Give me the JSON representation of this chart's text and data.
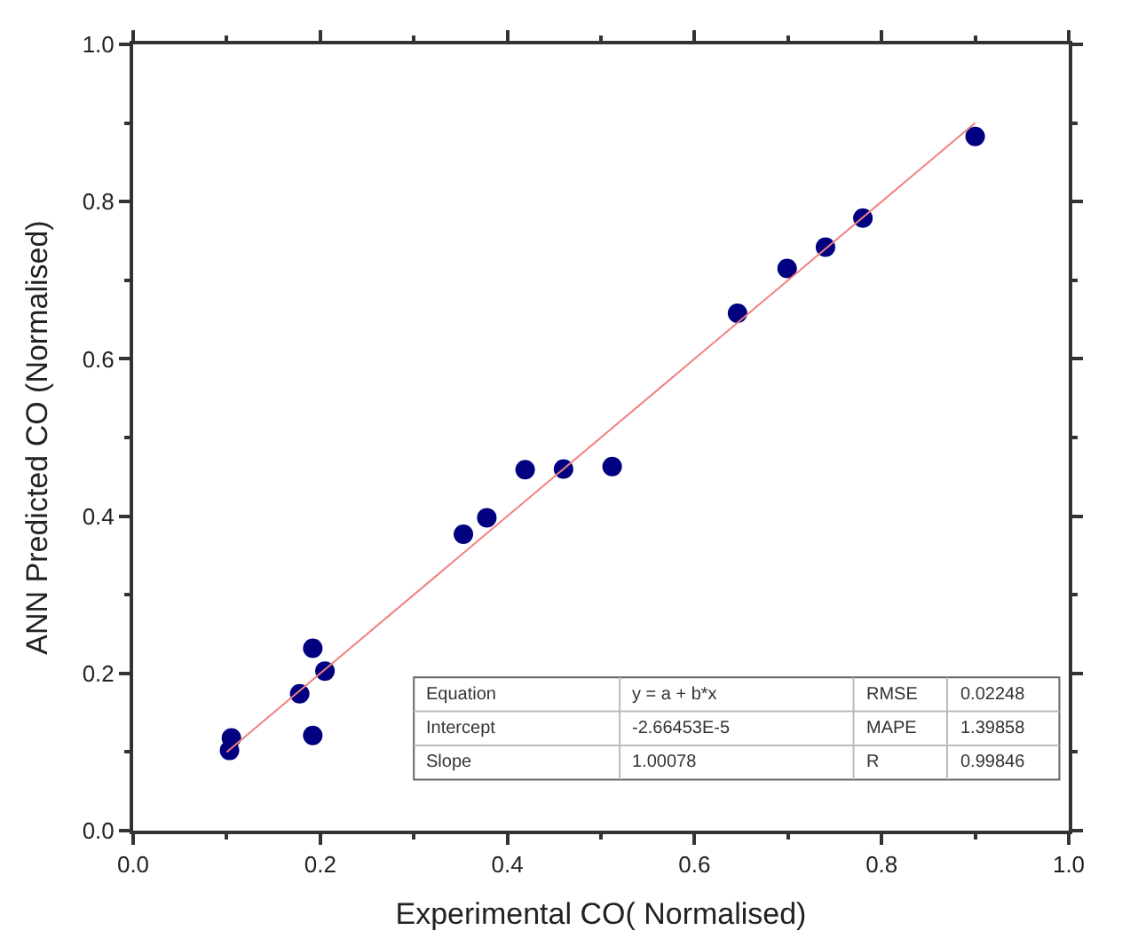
{
  "chart_data": {
    "type": "scatter",
    "xlabel": "Experimental CO( Normalised)",
    "ylabel": "ANN Predicted CO (Normalised)",
    "xlim": [
      0,
      1
    ],
    "ylim": [
      0,
      1
    ],
    "xticks": [
      {
        "value": 0,
        "label": "0.0"
      },
      {
        "value": 0.2,
        "label": "0.2"
      },
      {
        "value": 0.4,
        "label": "0.4"
      },
      {
        "value": 0.6,
        "label": "0.6"
      },
      {
        "value": 0.8,
        "label": "0.8"
      },
      {
        "value": 1,
        "label": "1.0"
      }
    ],
    "yticks": [
      {
        "value": 0,
        "label": "0.0"
      },
      {
        "value": 0.2,
        "label": "0.2"
      },
      {
        "value": 0.4,
        "label": "0.4"
      },
      {
        "value": 0.6,
        "label": "0.6"
      },
      {
        "value": 0.8,
        "label": "0.8"
      },
      {
        "value": 1,
        "label": "1.0"
      }
    ],
    "series": [
      {
        "marker": "circle",
        "color": "#000080",
        "x": [
          0.103,
          0.105,
          0.192,
          0.205,
          0.178,
          0.192,
          0.353,
          0.378,
          0.419,
          0.46,
          0.512,
          0.646,
          0.699,
          0.74,
          0.78,
          0.9
        ],
        "values": [
          0.102,
          0.118,
          0.232,
          0.203,
          0.174,
          0.121,
          0.377,
          0.398,
          0.459,
          0.46,
          0.463,
          0.658,
          0.715,
          0.742,
          0.779,
          0.883
        ]
      },
      {
        "type": "line",
        "marker": "none",
        "color": "#f08080",
        "line_style": "solid",
        "x": [
          0.1,
          0.9
        ],
        "values": [
          0.1,
          0.9
        ]
      }
    ],
    "annotations": [
      "Equation",
      "y = a + b*x",
      "RMSE",
      "0.02248",
      "Intercept",
      "-2.66453E-5",
      "MAPE",
      "1.39858",
      "Slope",
      "1.00078",
      "R",
      "0.99846"
    ]
  }
}
